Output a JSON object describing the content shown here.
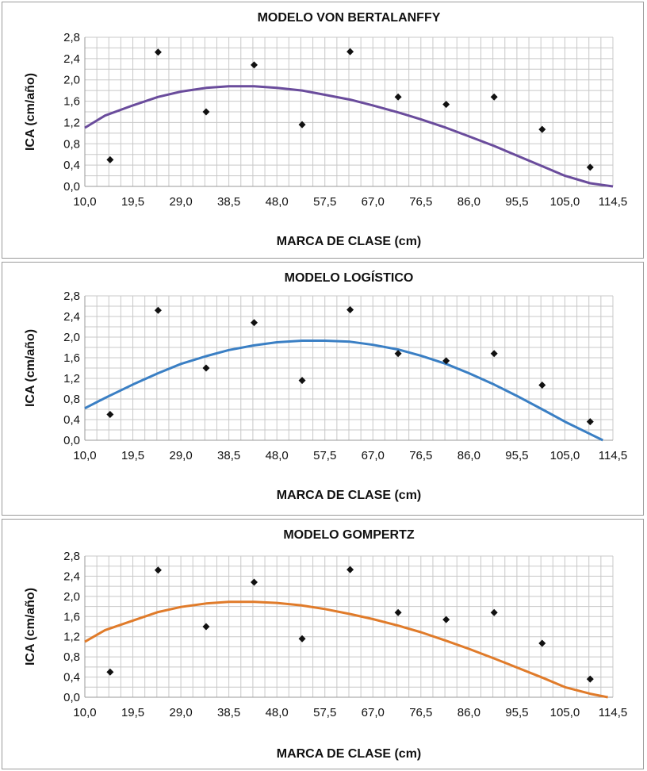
{
  "chart_data": [
    {
      "type": "scatter",
      "title": "MODELO VON BERTALANFFY",
      "xlabel": "MARCA DE CLASE (cm)",
      "ylabel": "ICA (cm/año)",
      "xlim": [
        10,
        114.5
      ],
      "ylim": [
        0,
        2.8
      ],
      "x_ticks": [
        "10,0",
        "19,5",
        "29,0",
        "38,5",
        "48,0",
        "57,5",
        "67,0",
        "76,5",
        "86,0",
        "95,5",
        "105,0",
        "114,5"
      ],
      "y_ticks": [
        "0,0",
        "0,4",
        "0,8",
        "1,2",
        "1,6",
        "2,0",
        "2,4",
        "2,8"
      ],
      "grid": true,
      "curve_color": "#6a4c9c",
      "points": [
        [
          15,
          0.5
        ],
        [
          24.5,
          2.52
        ],
        [
          34,
          1.4
        ],
        [
          43.5,
          2.28
        ],
        [
          53,
          1.16
        ],
        [
          62.5,
          2.53
        ],
        [
          72,
          1.68
        ],
        [
          81.5,
          1.54
        ],
        [
          91,
          1.68
        ],
        [
          100.5,
          1.07
        ],
        [
          110,
          0.36
        ]
      ],
      "curve": [
        [
          10,
          1.1
        ],
        [
          14,
          1.33
        ],
        [
          19.5,
          1.52
        ],
        [
          24.5,
          1.68
        ],
        [
          29,
          1.78
        ],
        [
          34,
          1.85
        ],
        [
          38.5,
          1.88
        ],
        [
          43.5,
          1.88
        ],
        [
          48,
          1.85
        ],
        [
          53,
          1.8
        ],
        [
          57.5,
          1.72
        ],
        [
          62.5,
          1.63
        ],
        [
          67,
          1.52
        ],
        [
          72,
          1.39
        ],
        [
          76.5,
          1.26
        ],
        [
          81.5,
          1.1
        ],
        [
          86,
          0.94
        ],
        [
          91,
          0.76
        ],
        [
          95.5,
          0.58
        ],
        [
          100.5,
          0.38
        ],
        [
          105,
          0.2
        ],
        [
          110,
          0.06
        ],
        [
          114.5,
          0.0
        ]
      ]
    },
    {
      "type": "scatter",
      "title": "MODELO LOGÍSTICO",
      "xlabel": "MARCA DE CLASE (cm)",
      "ylabel": "ICA (cm/año)",
      "xlim": [
        10,
        114.5
      ],
      "ylim": [
        0,
        2.8
      ],
      "x_ticks": [
        "10,0",
        "19,5",
        "29,0",
        "38,5",
        "48,0",
        "57,5",
        "67,0",
        "76,5",
        "86,0",
        "95,5",
        "105,0",
        "114,5"
      ],
      "y_ticks": [
        "0,0",
        "0,4",
        "0,8",
        "1,2",
        "1,6",
        "2,0",
        "2,4",
        "2,8"
      ],
      "grid": true,
      "curve_color": "#3a7fc4",
      "points": [
        [
          15,
          0.5
        ],
        [
          24.5,
          2.52
        ],
        [
          34,
          1.4
        ],
        [
          43.5,
          2.28
        ],
        [
          53,
          1.16
        ],
        [
          62.5,
          2.53
        ],
        [
          72,
          1.68
        ],
        [
          81.5,
          1.54
        ],
        [
          91,
          1.68
        ],
        [
          100.5,
          1.07
        ],
        [
          110,
          0.36
        ]
      ],
      "curve": [
        [
          10,
          0.62
        ],
        [
          14,
          0.82
        ],
        [
          19.5,
          1.08
        ],
        [
          24.5,
          1.3
        ],
        [
          29,
          1.48
        ],
        [
          34,
          1.63
        ],
        [
          38.5,
          1.75
        ],
        [
          43.5,
          1.84
        ],
        [
          48,
          1.9
        ],
        [
          53,
          1.93
        ],
        [
          57.5,
          1.93
        ],
        [
          62.5,
          1.91
        ],
        [
          67,
          1.85
        ],
        [
          72,
          1.76
        ],
        [
          76.5,
          1.64
        ],
        [
          81.5,
          1.48
        ],
        [
          86,
          1.3
        ],
        [
          91,
          1.08
        ],
        [
          95.5,
          0.86
        ],
        [
          100.5,
          0.6
        ],
        [
          105,
          0.36
        ],
        [
          110,
          0.12
        ],
        [
          112.5,
          0.0
        ]
      ]
    },
    {
      "type": "scatter",
      "title": "MODELO GOMPERTZ",
      "xlabel": "MARCA DE CLASE (cm)",
      "ylabel": "ICA  (cm/año)",
      "xlim": [
        10,
        114.5
      ],
      "ylim": [
        0,
        2.8
      ],
      "x_ticks": [
        "10,0",
        "19,5",
        "29,0",
        "38,5",
        "48,0",
        "57,5",
        "67,0",
        "76,5",
        "86,0",
        "95,5",
        "105,0",
        "114,5"
      ],
      "y_ticks": [
        "0,0",
        "0,4",
        "0,8",
        "1,2",
        "1,6",
        "2,0",
        "2,4",
        "2,8"
      ],
      "grid": true,
      "curve_color": "#e07b2a",
      "points": [
        [
          15,
          0.5
        ],
        [
          24.5,
          2.52
        ],
        [
          34,
          1.4
        ],
        [
          43.5,
          2.28
        ],
        [
          53,
          1.16
        ],
        [
          62.5,
          2.53
        ],
        [
          72,
          1.68
        ],
        [
          81.5,
          1.54
        ],
        [
          91,
          1.68
        ],
        [
          100.5,
          1.07
        ],
        [
          110,
          0.36
        ]
      ],
      "curve": [
        [
          10,
          1.1
        ],
        [
          14,
          1.33
        ],
        [
          19.5,
          1.52
        ],
        [
          24.5,
          1.69
        ],
        [
          29,
          1.79
        ],
        [
          34,
          1.86
        ],
        [
          38.5,
          1.89
        ],
        [
          43.5,
          1.89
        ],
        [
          48,
          1.87
        ],
        [
          53,
          1.82
        ],
        [
          57.5,
          1.75
        ],
        [
          62.5,
          1.65
        ],
        [
          67,
          1.55
        ],
        [
          72,
          1.42
        ],
        [
          76.5,
          1.29
        ],
        [
          81.5,
          1.12
        ],
        [
          86,
          0.96
        ],
        [
          91,
          0.77
        ],
        [
          95.5,
          0.59
        ],
        [
          100.5,
          0.39
        ],
        [
          105,
          0.2
        ],
        [
          110,
          0.07
        ],
        [
          113.5,
          0.0
        ]
      ]
    }
  ]
}
